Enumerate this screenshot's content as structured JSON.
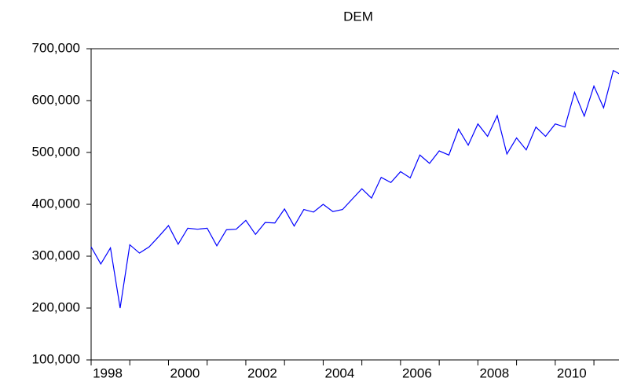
{
  "chart_data": {
    "type": "line",
    "title": "DEM",
    "x": [
      1998,
      1998.25,
      1998.5,
      1998.75,
      1999,
      1999.25,
      1999.5,
      1999.75,
      2000,
      2000.25,
      2000.5,
      2000.75,
      2001,
      2001.25,
      2001.5,
      2001.75,
      2002,
      2002.25,
      2002.5,
      2002.75,
      2003,
      2003.25,
      2003.5,
      2003.75,
      2004,
      2004.25,
      2004.5,
      2004.75,
      2005,
      2005.25,
      2005.5,
      2005.75,
      2006,
      2006.25,
      2006.5,
      2006.75,
      2007,
      2007.25,
      2007.5,
      2007.75,
      2008,
      2008.25,
      2008.5,
      2008.75,
      2009,
      2009.25,
      2009.5,
      2009.75,
      2010,
      2010.25,
      2010.5,
      2010.75,
      2011,
      2011.25,
      2011.5,
      2011.75
    ],
    "series": [
      {
        "color": "#0000ff",
        "values": [
          318000,
          285000,
          316000,
          200000,
          322000,
          306000,
          318000,
          338000,
          359000,
          323000,
          354000,
          352000,
          354000,
          320000,
          351000,
          352000,
          369000,
          342000,
          365000,
          364000,
          391000,
          358000,
          390000,
          385000,
          400000,
          386000,
          390000,
          410000,
          430000,
          412000,
          452000,
          442000,
          463000,
          451000,
          495000,
          479000,
          503000,
          495000,
          545000,
          514000,
          555000,
          531000,
          571000,
          497000,
          528000,
          505000,
          549000,
          531000,
          555000,
          549000,
          616000,
          570000,
          628000,
          586000,
          658000,
          648000
        ]
      }
    ],
    "xlim": [
      1998,
      2011.75
    ],
    "xticks": [
      1998,
      2000,
      2002,
      2004,
      2006,
      2008,
      2010
    ],
    "x_minor_ticks": [
      1999,
      2001,
      2003,
      2005,
      2007,
      2009,
      2011
    ],
    "ylim": [
      100000,
      700000
    ],
    "yticks": [
      {
        "value": 100000,
        "label": "100,000"
      },
      {
        "value": 200000,
        "label": "200,000"
      },
      {
        "value": 300000,
        "label": "300,000"
      },
      {
        "value": 400000,
        "label": "400,000"
      },
      {
        "value": 500000,
        "label": "500,000"
      },
      {
        "value": 600000,
        "label": "600,000"
      },
      {
        "value": 700000,
        "label": "700,000"
      }
    ]
  }
}
